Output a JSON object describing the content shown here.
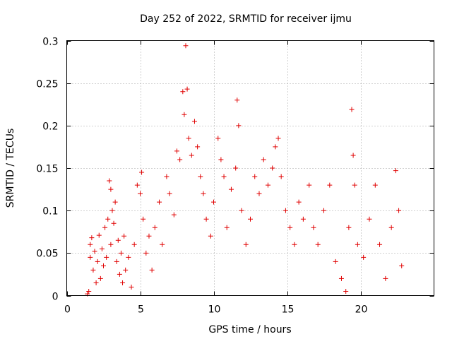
{
  "chart_data": {
    "type": "scatter",
    "title": "Day 252 of 2022, SRMTID for receiver ijmu",
    "xlabel": "GPS time / hours",
    "ylabel": "SRMTID / TECUs",
    "xlim": [
      0,
      25
    ],
    "ylim": [
      0,
      0.3
    ],
    "x_ticks": [
      0,
      5,
      10,
      15,
      20
    ],
    "x_tick_labels": [
      "0",
      "5",
      "10",
      "15",
      "20"
    ],
    "y_ticks": [
      0,
      0.05,
      0.1,
      0.15,
      0.2,
      0.25,
      0.3
    ],
    "y_tick_labels": [
      "0",
      "0.05",
      "0.1",
      "0.15",
      "0.2",
      "0.25",
      "0.3"
    ],
    "grid": true,
    "marker": "plus",
    "color": "#e00000",
    "series": [
      {
        "points": [
          [
            1.4,
            0.002
          ],
          [
            1.5,
            0.005
          ],
          [
            1.6,
            0.045
          ],
          [
            1.6,
            0.06
          ],
          [
            1.7,
            0.068
          ],
          [
            1.8,
            0.03
          ],
          [
            1.9,
            0.052
          ],
          [
            2.0,
            0.015
          ],
          [
            2.1,
            0.04
          ],
          [
            2.2,
            0.071
          ],
          [
            2.3,
            0.02
          ],
          [
            2.4,
            0.055
          ],
          [
            2.5,
            0.035
          ],
          [
            2.6,
            0.08
          ],
          [
            2.7,
            0.045
          ],
          [
            2.8,
            0.09
          ],
          [
            2.9,
            0.135
          ],
          [
            3.0,
            0.125
          ],
          [
            3.0,
            0.06
          ],
          [
            3.1,
            0.1
          ],
          [
            3.2,
            0.085
          ],
          [
            3.3,
            0.11
          ],
          [
            3.4,
            0.04
          ],
          [
            3.5,
            0.065
          ],
          [
            3.6,
            0.025
          ],
          [
            3.7,
            0.05
          ],
          [
            3.8,
            0.015
          ],
          [
            3.9,
            0.07
          ],
          [
            4.0,
            0.03
          ],
          [
            4.2,
            0.045
          ],
          [
            4.4,
            0.01
          ],
          [
            4.6,
            0.06
          ],
          [
            4.8,
            0.13
          ],
          [
            5.0,
            0.12
          ],
          [
            5.1,
            0.145
          ],
          [
            5.2,
            0.09
          ],
          [
            5.4,
            0.05
          ],
          [
            5.6,
            0.07
          ],
          [
            5.8,
            0.03
          ],
          [
            6.0,
            0.08
          ],
          [
            6.3,
            0.11
          ],
          [
            6.5,
            0.06
          ],
          [
            6.8,
            0.14
          ],
          [
            7.0,
            0.12
          ],
          [
            7.3,
            0.095
          ],
          [
            7.5,
            0.17
          ],
          [
            7.7,
            0.16
          ],
          [
            7.9,
            0.24
          ],
          [
            8.0,
            0.213
          ],
          [
            8.1,
            0.294
          ],
          [
            8.2,
            0.243
          ],
          [
            8.3,
            0.185
          ],
          [
            8.5,
            0.165
          ],
          [
            8.7,
            0.205
          ],
          [
            8.9,
            0.175
          ],
          [
            9.1,
            0.14
          ],
          [
            9.3,
            0.12
          ],
          [
            9.5,
            0.09
          ],
          [
            9.8,
            0.07
          ],
          [
            10.0,
            0.11
          ],
          [
            10.3,
            0.185
          ],
          [
            10.5,
            0.16
          ],
          [
            10.7,
            0.14
          ],
          [
            10.9,
            0.08
          ],
          [
            11.2,
            0.125
          ],
          [
            11.5,
            0.15
          ],
          [
            11.6,
            0.23
          ],
          [
            11.7,
            0.2
          ],
          [
            11.9,
            0.1
          ],
          [
            12.2,
            0.06
          ],
          [
            12.5,
            0.09
          ],
          [
            12.8,
            0.14
          ],
          [
            13.1,
            0.12
          ],
          [
            13.4,
            0.16
          ],
          [
            13.7,
            0.13
          ],
          [
            14.0,
            0.15
          ],
          [
            14.2,
            0.175
          ],
          [
            14.4,
            0.185
          ],
          [
            14.6,
            0.14
          ],
          [
            14.9,
            0.1
          ],
          [
            15.2,
            0.08
          ],
          [
            15.5,
            0.06
          ],
          [
            15.8,
            0.11
          ],
          [
            16.1,
            0.09
          ],
          [
            16.5,
            0.13
          ],
          [
            16.8,
            0.08
          ],
          [
            17.1,
            0.06
          ],
          [
            17.5,
            0.1
          ],
          [
            17.9,
            0.13
          ],
          [
            18.3,
            0.04
          ],
          [
            18.7,
            0.02
          ],
          [
            19.0,
            0.005
          ],
          [
            19.2,
            0.08
          ],
          [
            19.4,
            0.219
          ],
          [
            19.5,
            0.165
          ],
          [
            19.6,
            0.13
          ],
          [
            19.8,
            0.06
          ],
          [
            20.2,
            0.045
          ],
          [
            20.6,
            0.09
          ],
          [
            21.0,
            0.13
          ],
          [
            21.3,
            0.06
          ],
          [
            21.7,
            0.02
          ],
          [
            22.1,
            0.08
          ],
          [
            22.4,
            0.147
          ],
          [
            22.6,
            0.1
          ],
          [
            22.8,
            0.035
          ]
        ]
      }
    ]
  }
}
